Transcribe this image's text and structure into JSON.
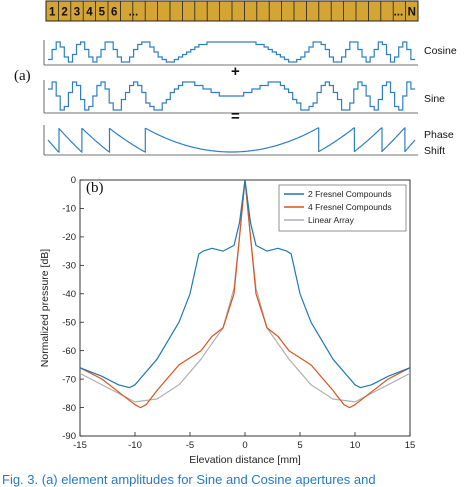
{
  "panel_a": {
    "label": "(a)",
    "element_numbers": [
      "1",
      "2",
      "3",
      "4",
      "5",
      "6",
      "..."
    ],
    "element_end": [
      "...",
      "N"
    ],
    "rows": [
      {
        "label": "Cosine"
      },
      {
        "label": "Sine"
      },
      {
        "label_line1": "Phase",
        "label_line2": "Shift"
      }
    ],
    "operators": [
      "+",
      "="
    ]
  },
  "panel_b": {
    "label": "(b)"
  },
  "chart_data": {
    "type": "line",
    "xlabel": "Elevation distance [mm]",
    "ylabel": "Normalized pressure [dB]",
    "xlim": [
      -15,
      15
    ],
    "ylim": [
      -90,
      0
    ],
    "xticks": [
      "-15",
      "-10",
      "-5",
      "0",
      "5",
      "10",
      "15"
    ],
    "yticks": [
      "0",
      "-10",
      "-20",
      "-30",
      "-40",
      "-50",
      "-60",
      "-70",
      "-80",
      "-90"
    ],
    "legend_position": "top-right",
    "grid": false,
    "series": [
      {
        "name": "2 Fresnel Compounds",
        "color": "#1f77b4",
        "x": [
          -15,
          -13,
          -11.5,
          -10.5,
          -10,
          -8,
          -6,
          -5,
          -4.2,
          -3.8,
          -3,
          -2,
          -1,
          -0.5,
          0,
          0.5,
          1,
          2,
          3,
          3.8,
          4.2,
          5,
          6,
          8,
          10,
          10.5,
          11.5,
          13,
          15
        ],
        "y": [
          -66,
          -69,
          -72,
          -73,
          -72,
          -63,
          -50,
          -40,
          -26,
          -25,
          -24,
          -25,
          -23,
          -15,
          0,
          -15,
          -23,
          -25,
          -24,
          -25,
          -26,
          -40,
          -50,
          -63,
          -72,
          -73,
          -72,
          -69,
          -66
        ]
      },
      {
        "name": "4 Fresnel Compounds",
        "color": "#d9541e",
        "x": [
          -15,
          -13,
          -11,
          -10,
          -9.5,
          -9,
          -8,
          -6,
          -4,
          -3,
          -2,
          -1,
          -0.5,
          0,
          0.5,
          1,
          2,
          3,
          4,
          6,
          8,
          9,
          9.5,
          10,
          11,
          13,
          15
        ],
        "y": [
          -66,
          -70,
          -76,
          -79,
          -80,
          -79,
          -74,
          -65,
          -60,
          -55,
          -52,
          -40,
          -20,
          0,
          -20,
          -40,
          -52,
          -55,
          -60,
          -65,
          -74,
          -79,
          -80,
          -79,
          -76,
          -70,
          -66
        ]
      },
      {
        "name": "Linear Array",
        "color": "#b0b0b0",
        "x": [
          -15,
          -12,
          -10,
          -8,
          -6,
          -4,
          -2,
          -1,
          -0.5,
          0,
          0.5,
          1,
          2,
          4,
          6,
          8,
          10,
          12,
          15
        ],
        "y": [
          -68,
          -74,
          -78,
          -77,
          -72,
          -63,
          -52,
          -38,
          -20,
          0,
          -20,
          -38,
          -52,
          -63,
          -72,
          -77,
          -78,
          -74,
          -68
        ]
      }
    ]
  },
  "caption": "Fig. 3.   (a) element amplitudes for Sine and Cosine apertures and"
}
